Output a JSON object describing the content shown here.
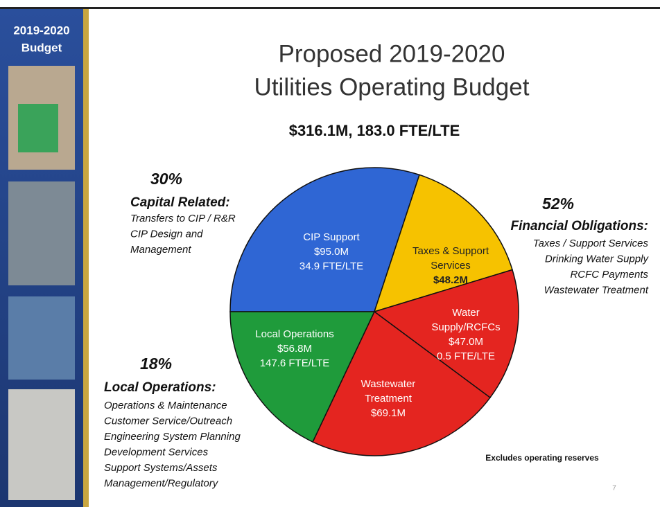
{
  "chart_data": {
    "type": "pie",
    "title": [
      "Proposed 2019-2020",
      "Utilities Operating Budget"
    ],
    "subtitle": "$316.1M, 183.0 FTE/LTE",
    "categories": [
      "CIP Support",
      "Taxes & Support Services",
      "Water Supply/RCFCs",
      "Wastewater Treatment",
      "Local Operations"
    ],
    "values": [
      95.0,
      48.2,
      47.0,
      69.1,
      56.8
    ],
    "value_labels": [
      "$95.0M",
      "$48.2M",
      "$47.0M",
      "$69.1M",
      "$56.8M"
    ],
    "fte_labels": [
      "34.9 FTE/LTE",
      null,
      "0.5 FTE/LTE",
      null,
      "147.6 FTE/LTE"
    ],
    "colors": [
      "#2f66d4",
      "#f6c200",
      "#e42520",
      "#e42520",
      "#1f9b3b"
    ],
    "annotations": [
      {
        "percent": "30%",
        "heading": "Capital Related:",
        "lines": [
          "Transfers to CIP / R&R",
          "CIP Design and",
          "Management"
        ]
      },
      {
        "percent": "52%",
        "heading": "Financial Obligations:",
        "lines": [
          "Taxes / Support Services",
          "Drinking Water Supply",
          "RCFC Payments",
          "Wastewater Treatment"
        ]
      },
      {
        "percent": "18%",
        "heading": "Local Operations:",
        "lines": [
          "Operations & Maintenance",
          "Customer Service/Outreach",
          "Engineering System Planning",
          "Development Services",
          "Support Systems/Assets",
          "Management/Regulatory"
        ]
      }
    ],
    "note": "Excludes operating reserves",
    "page_number": "7"
  },
  "sidebar": {
    "title": [
      "2019-2020",
      "Budget"
    ]
  }
}
